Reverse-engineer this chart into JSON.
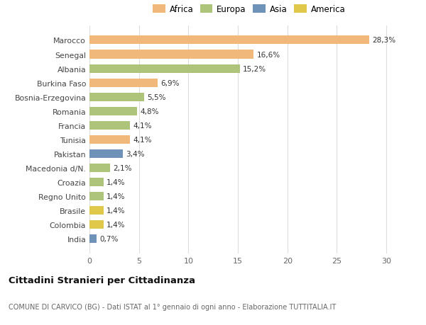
{
  "categories": [
    "Marocco",
    "Senegal",
    "Albania",
    "Burkina Faso",
    "Bosnia-Erzegovina",
    "Romania",
    "Francia",
    "Tunisia",
    "Pakistan",
    "Macedonia d/N.",
    "Croazia",
    "Regno Unito",
    "Brasile",
    "Colombia",
    "India"
  ],
  "values": [
    28.3,
    16.6,
    15.2,
    6.9,
    5.5,
    4.8,
    4.1,
    4.1,
    3.4,
    2.1,
    1.4,
    1.4,
    1.4,
    1.4,
    0.7
  ],
  "labels": [
    "28,3%",
    "16,6%",
    "15,2%",
    "6,9%",
    "5,5%",
    "4,8%",
    "4,1%",
    "4,1%",
    "3,4%",
    "2,1%",
    "1,4%",
    "1,4%",
    "1,4%",
    "1,4%",
    "0,7%"
  ],
  "colors": [
    "#f0b87a",
    "#f0b87a",
    "#aec47a",
    "#f0b87a",
    "#aec47a",
    "#aec47a",
    "#aec47a",
    "#f0b87a",
    "#6e92b8",
    "#aec47a",
    "#aec47a",
    "#aec47a",
    "#e0c84a",
    "#e0c84a",
    "#6e92b8"
  ],
  "legend_labels": [
    "Africa",
    "Europa",
    "Asia",
    "America"
  ],
  "legend_colors": [
    "#f0b87a",
    "#aec47a",
    "#6e92b8",
    "#e0c84a"
  ],
  "title": "Cittadini Stranieri per Cittadinanza",
  "subtitle": "COMUNE DI CARVICO (BG) - Dati ISTAT al 1° gennaio di ogni anno - Elaborazione TUTTITALIA.IT",
  "xlim": [
    0,
    31
  ],
  "xticks": [
    0,
    5,
    10,
    15,
    20,
    25,
    30
  ],
  "background_color": "#ffffff",
  "bar_height": 0.6
}
